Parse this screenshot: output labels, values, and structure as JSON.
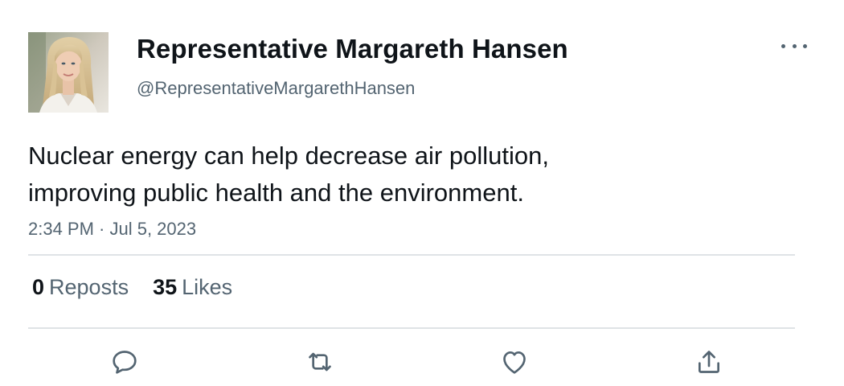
{
  "author": {
    "display_name": "Representative Margareth Hansen",
    "handle": "@RepresentativeMargarethHansen",
    "avatar_icon": "profile-photo"
  },
  "tweet": {
    "text_lines": [
      "Nuclear energy can help decrease air pollution,",
      "improving public health and the environment."
    ],
    "timestamp": "2:34 PM · Jul 5, 2023"
  },
  "stats": {
    "reposts_count": "0",
    "reposts_label": "Reposts",
    "likes_count": "35",
    "likes_label": "Likes"
  },
  "actions": [
    {
      "icon": "reply-icon"
    },
    {
      "icon": "repost-icon"
    },
    {
      "icon": "like-icon"
    },
    {
      "icon": "share-icon"
    }
  ],
  "colors": {
    "text_primary": "#0f1419",
    "text_secondary": "#536471",
    "divider": "#dfe3e6"
  }
}
